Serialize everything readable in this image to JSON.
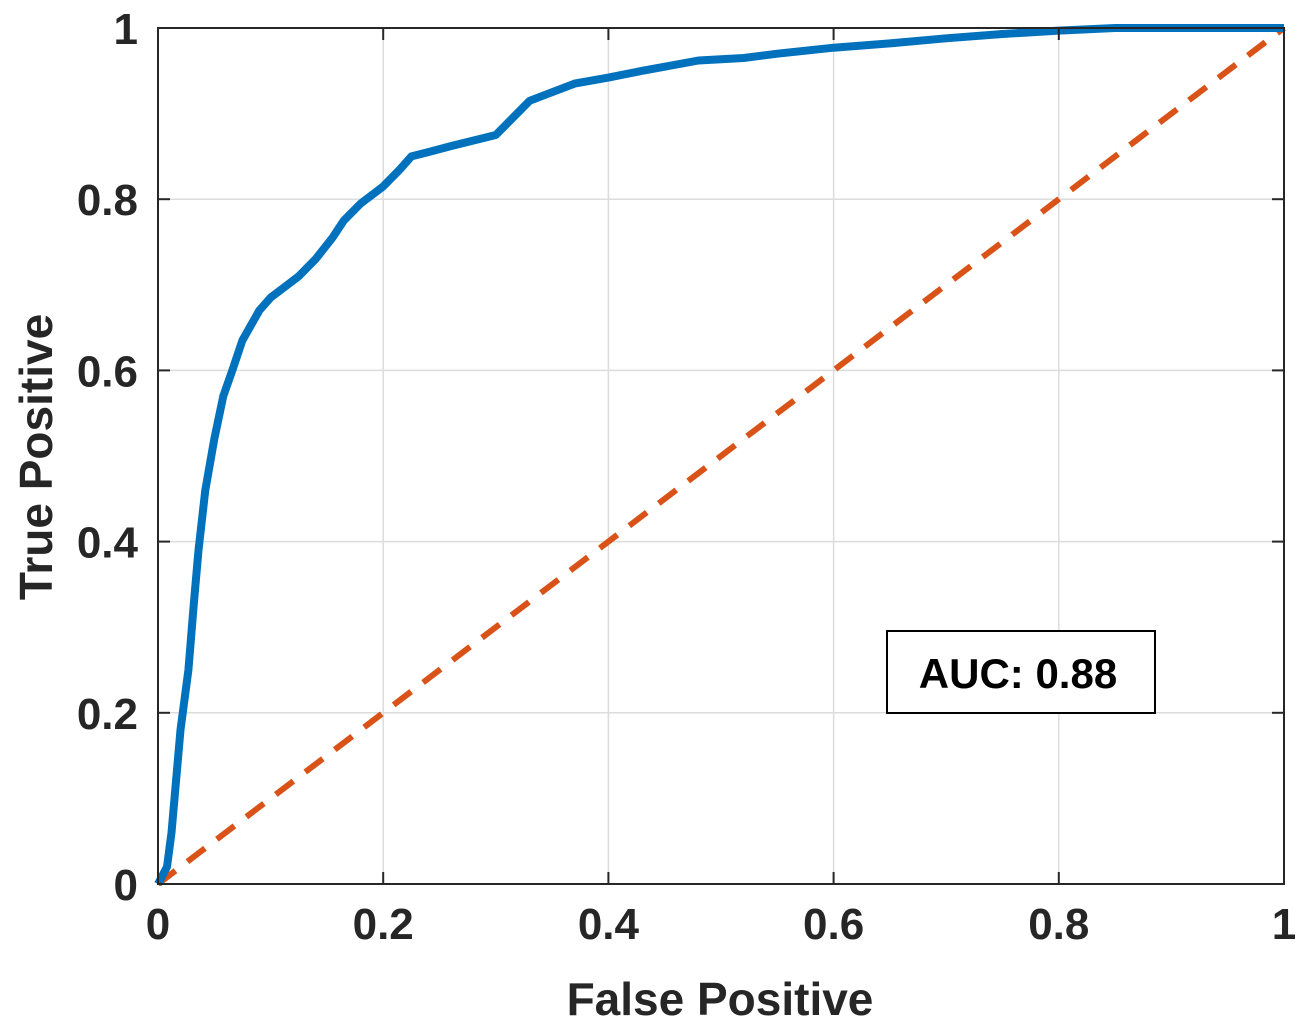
{
  "chart_data": {
    "type": "line",
    "xlabel": "False Positive",
    "ylabel": "True Positive",
    "xlim": [
      0,
      1
    ],
    "ylim": [
      0,
      1
    ],
    "grid": true,
    "x_ticks": [
      "0",
      "0.2",
      "0.4",
      "0.6",
      "0.8",
      "1"
    ],
    "y_ticks": [
      "0",
      "0.2",
      "0.4",
      "0.6",
      "0.8",
      "1"
    ],
    "annotation": "AUC: 0.88",
    "series": [
      {
        "color": "#0072BD",
        "style": "solid",
        "points": [
          [
            0,
            0
          ],
          [
            0.008,
            0.02
          ],
          [
            0.012,
            0.06
          ],
          [
            0.016,
            0.12
          ],
          [
            0.02,
            0.18
          ],
          [
            0.027,
            0.25
          ],
          [
            0.032,
            0.33
          ],
          [
            0.036,
            0.39
          ],
          [
            0.042,
            0.46
          ],
          [
            0.05,
            0.52
          ],
          [
            0.058,
            0.57
          ],
          [
            0.066,
            0.6
          ],
          [
            0.075,
            0.635
          ],
          [
            0.09,
            0.67
          ],
          [
            0.1,
            0.685
          ],
          [
            0.11,
            0.695
          ],
          [
            0.125,
            0.71
          ],
          [
            0.14,
            0.73
          ],
          [
            0.155,
            0.755
          ],
          [
            0.165,
            0.775
          ],
          [
            0.18,
            0.795
          ],
          [
            0.2,
            0.815
          ],
          [
            0.215,
            0.835
          ],
          [
            0.225,
            0.85
          ],
          [
            0.24,
            0.855
          ],
          [
            0.26,
            0.862
          ],
          [
            0.3,
            0.875
          ],
          [
            0.315,
            0.895
          ],
          [
            0.33,
            0.915
          ],
          [
            0.35,
            0.925
          ],
          [
            0.37,
            0.935
          ],
          [
            0.4,
            0.942
          ],
          [
            0.43,
            0.95
          ],
          [
            0.48,
            0.962
          ],
          [
            0.52,
            0.965
          ],
          [
            0.55,
            0.97
          ],
          [
            0.6,
            0.977
          ],
          [
            0.65,
            0.982
          ],
          [
            0.7,
            0.988
          ],
          [
            0.75,
            0.993
          ],
          [
            0.8,
            0.997
          ],
          [
            0.85,
            1.0
          ],
          [
            0.9,
            1.0
          ],
          [
            0.95,
            1.0
          ],
          [
            1.0,
            1.0
          ]
        ]
      },
      {
        "color": "#D95319",
        "style": "dashed",
        "points": [
          [
            0,
            0
          ],
          [
            1,
            1
          ]
        ]
      }
    ]
  },
  "colors": {
    "roc_curve": "#0072BD",
    "reference_line": "#D95319",
    "grid": "#dcdcdc",
    "axis": "#262626"
  }
}
